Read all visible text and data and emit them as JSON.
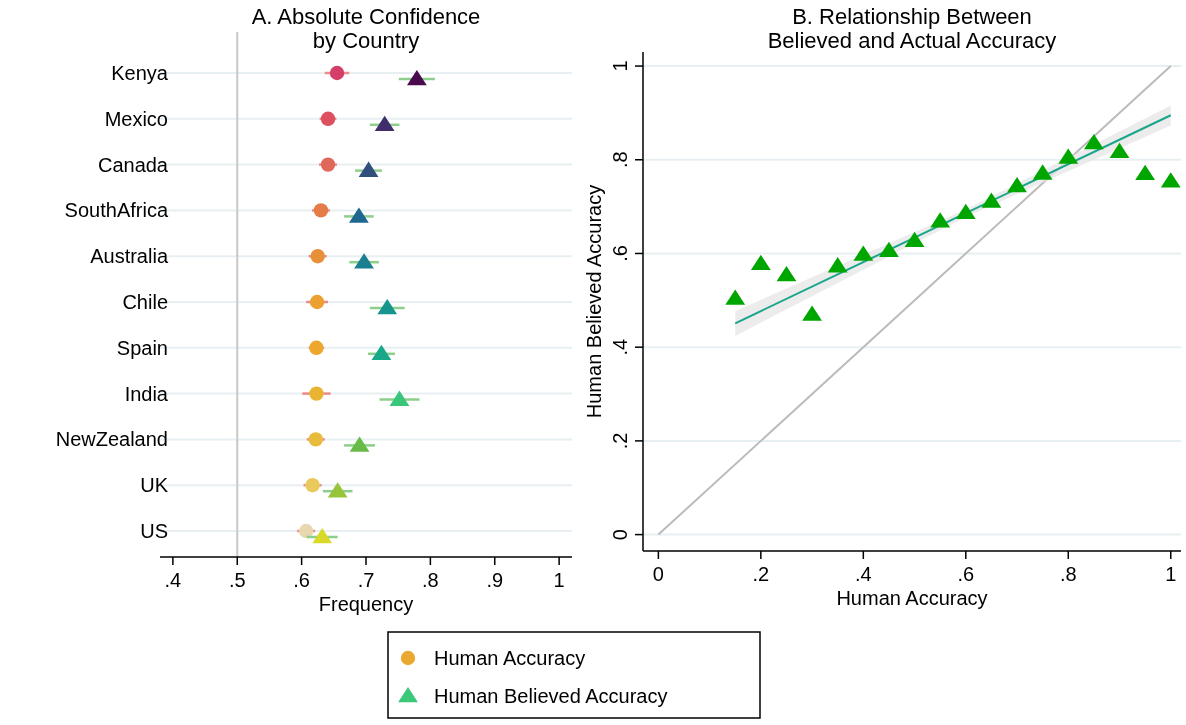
{
  "chart_data": [
    {
      "type": "scatter",
      "orientation": "horizontal",
      "title": "A. Absolute Confidence\nby Country",
      "xlabel": "Frequency",
      "categories": [
        "Kenya",
        "Mexico",
        "Canada",
        "SouthAfrica",
        "Australia",
        "Chile",
        "Spain",
        "India",
        "NewZealand",
        "UK",
        "US"
      ],
      "series": [
        {
          "name": "Human Accuracy",
          "marker": "circle",
          "color": "#e9a830",
          "colors": [
            "#d43f6a",
            "#dc5060",
            "#e0685a",
            "#e47c48",
            "#e88f3a",
            "#eba02f",
            "#eca72c",
            "#e9b431",
            "#e8bb3c",
            "#e8c95a",
            "#e8d8b0"
          ],
          "values": [
            0.655,
            0.641,
            0.641,
            0.63,
            0.625,
            0.624,
            0.623,
            0.623,
            0.622,
            0.617,
            0.607
          ],
          "errors": [
            0.019,
            0.013,
            0.014,
            0.014,
            0.014,
            0.017,
            0.012,
            0.022,
            0.014,
            0.014,
            0.014
          ]
        },
        {
          "name": "Human Believed Accuracy",
          "marker": "triangle",
          "color": "#3cc87a",
          "colors": [
            "#4a0a4e",
            "#3f2e6a",
            "#314f7c",
            "#1e6890",
            "#1b7e91",
            "#16958e",
            "#17a88a",
            "#39c57a",
            "#67bb46",
            "#98c43a",
            "#d9d92a"
          ],
          "values": [
            0.779,
            0.729,
            0.704,
            0.689,
            0.697,
            0.733,
            0.724,
            0.752,
            0.69,
            0.656,
            0.632
          ],
          "errors": [
            0.028,
            0.023,
            0.021,
            0.023,
            0.023,
            0.027,
            0.021,
            0.031,
            0.024,
            0.023,
            0.024
          ]
        }
      ],
      "xlim": [
        0.38,
        1.02
      ],
      "xticks": [
        {
          "value": 0.4,
          "label": ".4"
        },
        {
          "value": 0.5,
          "label": ".5"
        },
        {
          "value": 0.6,
          "label": ".6"
        },
        {
          "value": 0.7,
          "label": ".7"
        },
        {
          "value": 0.8,
          "label": ".8"
        },
        {
          "value": 0.9,
          "label": ".9"
        },
        {
          "value": 1,
          "label": "1"
        }
      ],
      "ref_lines": [
        {
          "axis": "x",
          "value": 0.5,
          "color": "#c8c8c8"
        }
      ],
      "grid": "y",
      "legend": "bottom"
    },
    {
      "type": "scatter",
      "title": "B. Relationship Between\nBelieved and Actual Accuracy",
      "xlabel": "Human Accuracy",
      "ylabel": "Human Believed Accuracy",
      "series": [
        {
          "type": "line",
          "color": "#bbbbbb",
          "x": [
            0,
            1
          ],
          "values": [
            0,
            1
          ]
        },
        {
          "type": "line",
          "color": "#1aa58c",
          "x": [
            0.15,
            0.6,
            1
          ],
          "values": [
            0.451,
            0.686,
            0.895
          ],
          "lower": [
            0.424,
            0.678,
            0.873
          ],
          "upper": [
            0.477,
            0.694,
            0.916
          ]
        },
        {
          "marker": "triangle",
          "color": "#00a600",
          "x": [
            0.15,
            0.2,
            0.25,
            0.3,
            0.35,
            0.4,
            0.45,
            0.5,
            0.55,
            0.6,
            0.65,
            0.7,
            0.75,
            0.8,
            0.85,
            0.9,
            0.95,
            1
          ],
          "values": [
            0.504,
            0.578,
            0.554,
            0.47,
            0.573,
            0.598,
            0.606,
            0.627,
            0.669,
            0.687,
            0.711,
            0.744,
            0.771,
            0.805,
            0.836,
            0.817,
            0.77,
            0.754
          ]
        }
      ],
      "xlim": [
        -0.03,
        1.02
      ],
      "xticks": [
        {
          "value": 0,
          "label": "0"
        },
        {
          "value": 0.2,
          "label": ".2"
        },
        {
          "value": 0.4,
          "label": ".4"
        },
        {
          "value": 0.6,
          "label": ".6"
        },
        {
          "value": 0.8,
          "label": ".8"
        },
        {
          "value": 1,
          "label": "1"
        }
      ],
      "ylim": [
        -0.035,
        1.03
      ],
      "yticks": [
        {
          "value": 0,
          "label": "0"
        },
        {
          "value": 0.2,
          "label": ".2"
        },
        {
          "value": 0.4,
          "label": ".4"
        },
        {
          "value": 0.6,
          "label": ".6"
        },
        {
          "value": 0.8,
          "label": ".8"
        },
        {
          "value": 1,
          "label": "1"
        }
      ],
      "grid": "y"
    }
  ]
}
